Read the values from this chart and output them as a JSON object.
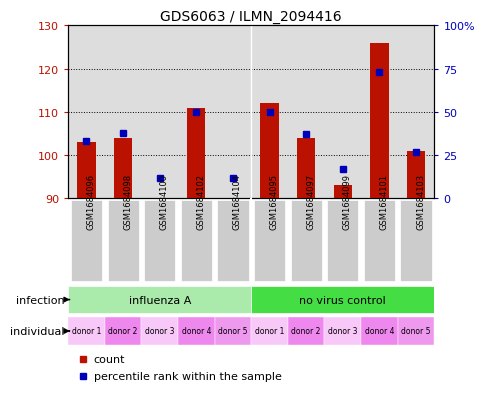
{
  "title": "GDS6063 / ILMN_2094416",
  "samples": [
    "GSM1684096",
    "GSM1684098",
    "GSM1684100",
    "GSM1684102",
    "GSM1684104",
    "GSM1684095",
    "GSM1684097",
    "GSM1684099",
    "GSM1684101",
    "GSM1684103"
  ],
  "counts": [
    103,
    104,
    90,
    111,
    90,
    112,
    104,
    93,
    126,
    101
  ],
  "percentile_ranks": [
    33,
    38,
    12,
    50,
    12,
    50,
    37,
    17,
    73,
    27
  ],
  "ylim_left": [
    90,
    130
  ],
  "ylim_right": [
    0,
    100
  ],
  "yticks_left": [
    90,
    100,
    110,
    120,
    130
  ],
  "yticks_right": [
    0,
    25,
    50,
    75,
    100
  ],
  "ytick_labels_right": [
    "0",
    "25",
    "50",
    "75",
    "100%"
  ],
  "infection_groups": [
    {
      "label": "influenza A",
      "start": 0,
      "end": 5,
      "color": "#aaeaaa"
    },
    {
      "label": "no virus control",
      "start": 5,
      "end": 10,
      "color": "#44dd44"
    }
  ],
  "individual_labels": [
    "donor 1",
    "donor 2",
    "donor 3",
    "donor 4",
    "donor 5",
    "donor 1",
    "donor 2",
    "donor 3",
    "donor 4",
    "donor 5"
  ],
  "individual_colors": [
    "#f8c8f8",
    "#ee88ee",
    "#f8c8f8",
    "#ee88ee",
    "#ee99ee",
    "#f8c8f8",
    "#ee88ee",
    "#f8c8f8",
    "#ee88ee",
    "#ee99ee"
  ],
  "bar_color": "#bb1100",
  "dot_color": "#0000bb",
  "base_value": 90,
  "bar_width": 0.5,
  "xtick_bg": "#cccccc",
  "legend_items": [
    {
      "label": "count",
      "color": "#bb1100"
    },
    {
      "label": "percentile rank within the sample",
      "color": "#0000bb"
    }
  ],
  "plot_bg": "#dddddd"
}
